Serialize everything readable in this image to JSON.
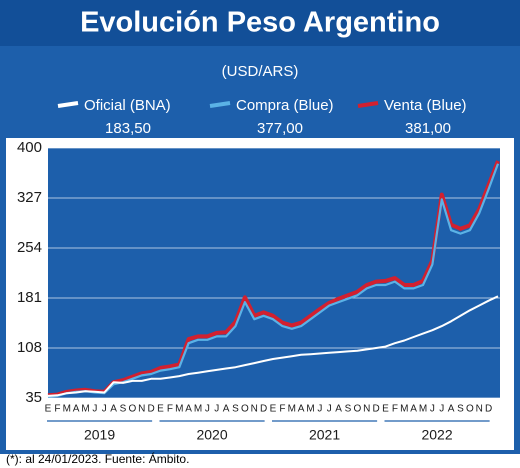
{
  "chart_data": {
    "type": "line",
    "title": "Evolución Peso Argentino",
    "subtitle": "(USD/ARS)",
    "footnote": "(*): al 24/01/2023. Fuente: Ámbito.",
    "categories": [
      "E",
      "F",
      "M",
      "A",
      "M",
      "J",
      "J",
      "A",
      "S",
      "O",
      "N",
      "D",
      "E",
      "F",
      "M",
      "A",
      "M",
      "J",
      "J",
      "A",
      "S",
      "O",
      "N",
      "D",
      "E",
      "F",
      "M",
      "A",
      "M",
      "J",
      "J",
      "A",
      "S",
      "O",
      "N",
      "D",
      "E",
      "F",
      "M",
      "A",
      "M",
      "J",
      "J",
      "A",
      "S",
      "O",
      "N",
      "D",
      null
    ],
    "years": [
      "2019",
      "2020",
      "2021",
      "2022"
    ],
    "ylim": [
      35,
      400
    ],
    "yticks": [
      35,
      108,
      181,
      254,
      327,
      400
    ],
    "grid": true,
    "series": [
      {
        "name": "Venta (Blue)",
        "color": "#d2202f",
        "last_label": "381,00",
        "values": [
          39,
          40,
          44,
          46,
          47,
          45,
          44,
          58,
          61,
          66,
          71,
          73,
          79,
          81,
          84,
          121,
          125,
          125,
          130,
          131,
          146,
          182,
          155,
          160,
          155,
          145,
          141,
          145,
          155,
          165,
          174,
          180,
          185,
          190,
          200,
          205,
          206,
          210,
          200,
          200,
          206,
          236,
          332,
          288,
          282,
          287,
          311,
          346,
          381
        ]
      },
      {
        "name": "Compra (Blue)",
        "color": "#5ab2e6",
        "last_label": "377,00",
        "values": [
          37,
          38,
          42,
          44,
          45,
          43,
          42,
          55,
          58,
          63,
          68,
          70,
          75,
          77,
          80,
          115,
          120,
          120,
          125,
          125,
          140,
          175,
          150,
          155,
          150,
          140,
          136,
          140,
          150,
          160,
          170,
          175,
          180,
          185,
          195,
          200,
          200,
          205,
          195,
          195,
          200,
          230,
          325,
          280,
          275,
          280,
          305,
          340,
          377
        ]
      },
      {
        "name": "Oficial (BNA)",
        "color": "#ffffff",
        "last_label": "183,50",
        "values": [
          38,
          39,
          42,
          43,
          45,
          44,
          43,
          58,
          57,
          60,
          60,
          63,
          63,
          65,
          67,
          70,
          72,
          74,
          76,
          78,
          80,
          83,
          86,
          89,
          92,
          94,
          96,
          98,
          99,
          100,
          101,
          102,
          103,
          104,
          106,
          108,
          110,
          115,
          119,
          124,
          129,
          134,
          140,
          147,
          155,
          163,
          170,
          177,
          183.5
        ]
      }
    ]
  }
}
